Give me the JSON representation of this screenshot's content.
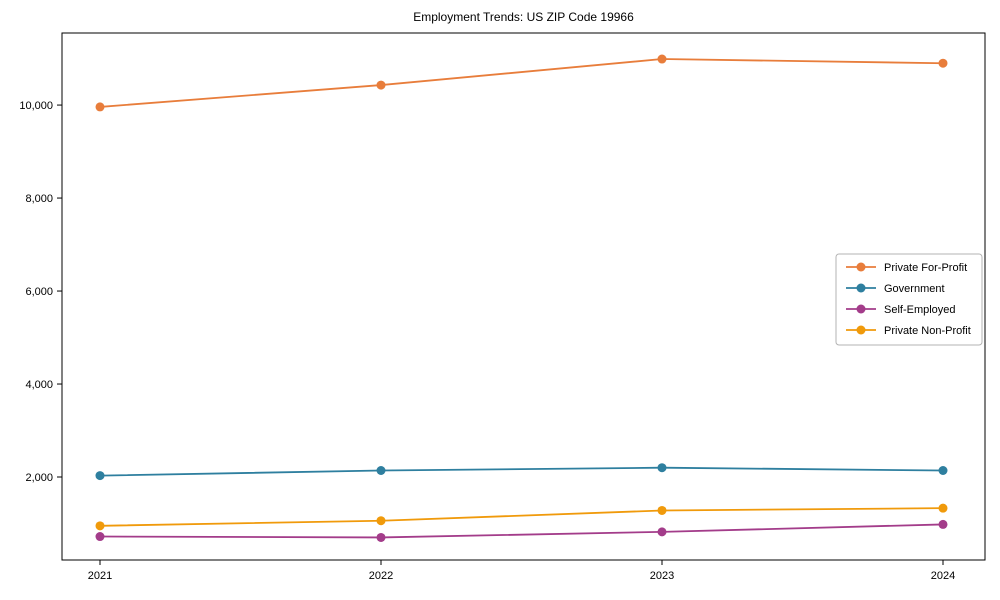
{
  "chart_data": {
    "type": "line",
    "title": "Employment Trends: US ZIP Code 19966",
    "categories": [
      "2021",
      "2022",
      "2023",
      "2024"
    ],
    "series": [
      {
        "name": "Private For-Profit",
        "color": "#E87D3B",
        "values": [
          9960,
          10430,
          10990,
          10900
        ]
      },
      {
        "name": "Government",
        "color": "#2E7F9F",
        "values": [
          2030,
          2140,
          2200,
          2140
        ]
      },
      {
        "name": "Self-Employed",
        "color": "#A33C8A",
        "values": [
          720,
          700,
          820,
          980
        ]
      },
      {
        "name": "Private Non-Profit",
        "color": "#F09A0B",
        "values": [
          950,
          1060,
          1280,
          1330
        ]
      }
    ],
    "y_ticks": [
      {
        "value": 2000,
        "label": "2,000"
      },
      {
        "value": 4000,
        "label": "4,000"
      },
      {
        "value": 6000,
        "label": "6,000"
      },
      {
        "value": 8000,
        "label": "8,000"
      },
      {
        "value": 10000,
        "label": "10,000"
      }
    ],
    "ylim": [
      215,
      11550
    ],
    "grid": false,
    "marker": "circle",
    "legend_position": "right",
    "frame_color": "#000000",
    "legend_border_color": "#b3b3b3",
    "background": "#ffffff"
  }
}
